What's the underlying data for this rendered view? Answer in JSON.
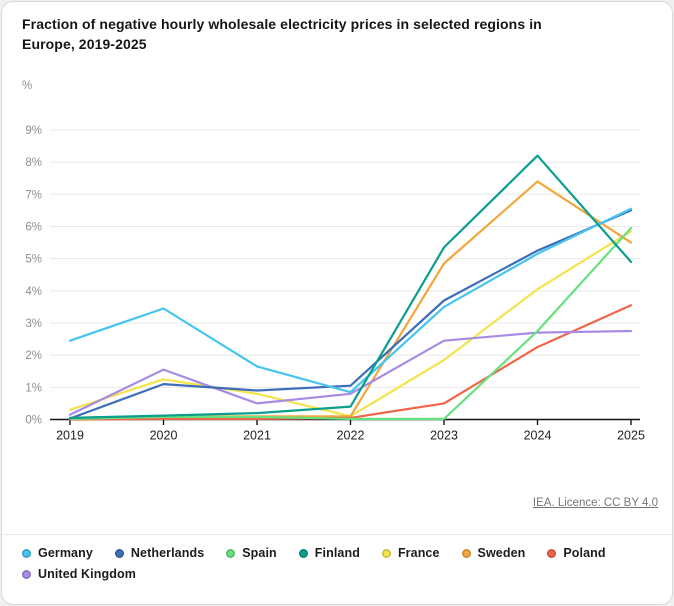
{
  "title": "Fraction of negative hourly wholesale electricity prices in selected regions in Europe, 2019-2025",
  "unit_label": "%",
  "source": {
    "link_text": "IEA. Licence: CC BY 4.0"
  },
  "chart_data": {
    "type": "line",
    "x": [
      2019,
      2020,
      2021,
      2022,
      2023,
      2024,
      2025
    ],
    "x_tick_labels": [
      "2019",
      "2020",
      "2021",
      "2022",
      "2023",
      "2024",
      "2025"
    ],
    "y_tick_labels": [
      "0%",
      "1%",
      "2%",
      "3%",
      "4%",
      "5%",
      "6%",
      "7%",
      "8%",
      "9%"
    ],
    "title": "Fraction of negative hourly wholesale electricity prices in selected regions in Europe, 2019-2025",
    "xlabel": "",
    "ylabel": "%",
    "ylim": [
      0,
      9
    ],
    "grid": true,
    "legend_position": "bottom",
    "series": [
      {
        "name": "Germany",
        "color": "#45C5EE",
        "values": [
          2.45,
          3.45,
          1.65,
          0.85,
          3.5,
          5.15,
          6.55
        ]
      },
      {
        "name": "Netherlands",
        "color": "#3D6EB8",
        "values": [
          0.03,
          1.1,
          0.9,
          1.05,
          3.7,
          5.25,
          6.5
        ]
      },
      {
        "name": "Spain",
        "color": "#67E07E",
        "values": [
          0.02,
          0.08,
          0.08,
          0.02,
          0.02,
          2.75,
          5.95
        ]
      },
      {
        "name": "Finland",
        "color": "#0B9E8E",
        "values": [
          0.05,
          0.12,
          0.2,
          0.4,
          5.35,
          8.2,
          4.9
        ]
      },
      {
        "name": "France",
        "color": "#F4E34B",
        "values": [
          0.3,
          1.25,
          0.8,
          0.1,
          1.85,
          4.05,
          5.85
        ]
      },
      {
        "name": "Sweden",
        "color": "#F2A73D",
        "values": [
          0.05,
          0.1,
          0.1,
          0.1,
          4.85,
          7.4,
          5.5
        ]
      },
      {
        "name": "Poland",
        "color": "#F0644A",
        "values": [
          0.0,
          0.02,
          0.02,
          0.05,
          0.5,
          2.25,
          3.55
        ]
      },
      {
        "name": "United Kingdom",
        "color": "#A88BE4",
        "values": [
          0.15,
          1.55,
          0.5,
          0.8,
          2.45,
          2.7,
          2.75
        ]
      }
    ],
    "draw_order": [
      "France",
      "Sweden",
      "Poland",
      "United Kingdom",
      "Spain",
      "Netherlands",
      "Germany",
      "Finland"
    ],
    "legend_rows": [
      [
        "Germany",
        "Netherlands",
        "Spain",
        "Finland",
        "France",
        "Sweden",
        "Poland"
      ],
      [
        "United Kingdom"
      ]
    ]
  }
}
